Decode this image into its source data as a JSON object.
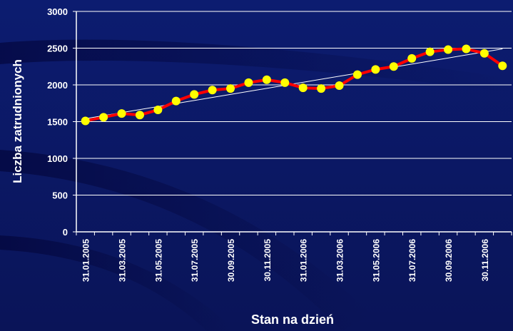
{
  "chart_data": {
    "type": "line",
    "x_label": "Stan na dzień",
    "y_label": "Liczba zatrudnionych",
    "categories": [
      "31.01.2005",
      null,
      "31.03.2005",
      null,
      "31.05.2005",
      null,
      "31.07.2005",
      null,
      "30.09.2005",
      null,
      "30.11.2005",
      null,
      "31.01.2006",
      null,
      "31.03.2006",
      null,
      "31.05.2006",
      null,
      "31.07.2006",
      null,
      "30.09.2006",
      null,
      "30.11.2006",
      null
    ],
    "series": [
      {
        "color": "#ff0000",
        "marker_color": "#ffff00",
        "values": [
          1510,
          1560,
          1610,
          1590,
          1660,
          1780,
          1870,
          1930,
          1950,
          2030,
          2070,
          2030,
          1960,
          1950,
          1990,
          2140,
          2210,
          2250,
          2360,
          2450,
          2480,
          2490,
          2430,
          2260
        ]
      }
    ],
    "trendline": {
      "color": "#ffffff",
      "values": [
        1540,
        2490
      ]
    },
    "ylim": [
      0,
      3000
    ],
    "yticks": [
      0,
      500,
      1000,
      1500,
      2000,
      2500,
      3000
    ],
    "grid": true
  }
}
